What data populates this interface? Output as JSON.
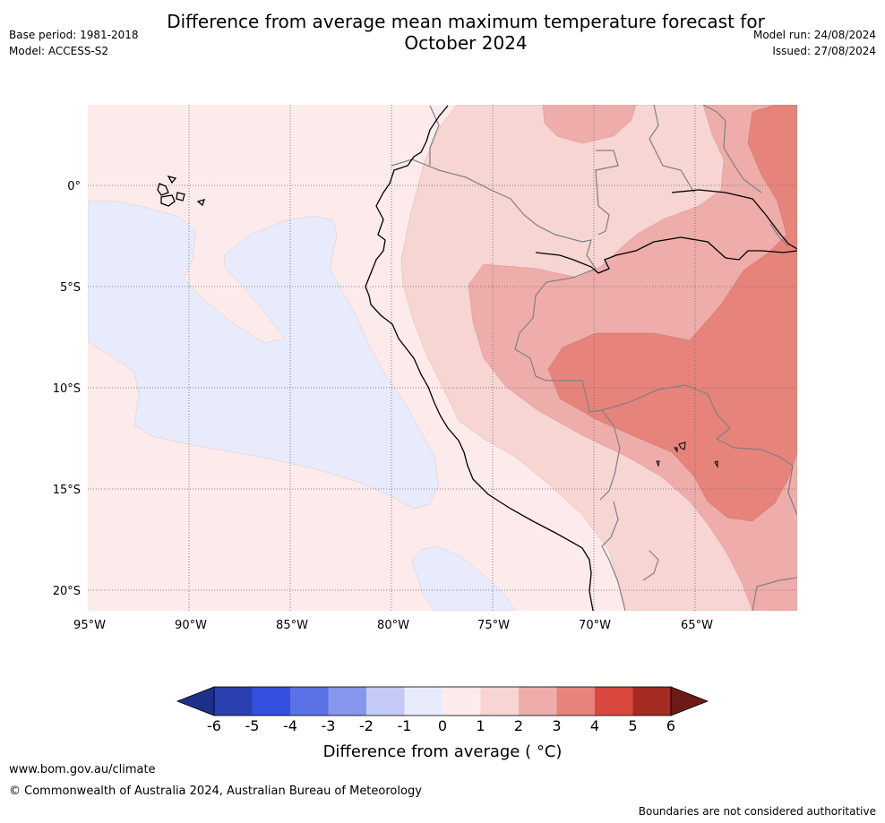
{
  "title_line1": "Difference from average mean maximum temperature forecast for",
  "title_line2": "October 2024",
  "base_period": "Base period: 1981-2018",
  "model": "Model: ACCESS-S2",
  "model_run": "Model run: 24/08/2024",
  "issued": "Issued: 27/08/2024",
  "lon_ticks": [
    "95°W",
    "90°W",
    "85°W",
    "80°W",
    "75°W",
    "70°W",
    "65°W"
  ],
  "lat_ticks": [
    "0°",
    "5°S",
    "10°S",
    "15°S",
    "20°S"
  ],
  "colorbar": {
    "title": "Difference from average ( °C)",
    "labels": [
      "-6",
      "-5",
      "-4",
      "-3",
      "-2",
      "-1",
      "0",
      "1",
      "2",
      "3",
      "4",
      "5",
      "6"
    ],
    "colors": [
      "#1f2f8c",
      "#2a3fb0",
      "#3350e0",
      "#5a72e6",
      "#8596ec",
      "#c3caf5",
      "#e8ebfb",
      "#fcebea",
      "#f6d5d3",
      "#eeadaa",
      "#e6847c",
      "#d9483e",
      "#a52a22",
      "#6e1a16"
    ]
  },
  "footer": {
    "url": "www.bom.gov.au/climate",
    "copyright": "© Commonwealth of Australia 2024, Australian Bureau of Meteorology",
    "disclaimer": "Boundaries are not considered authoritative"
  }
}
